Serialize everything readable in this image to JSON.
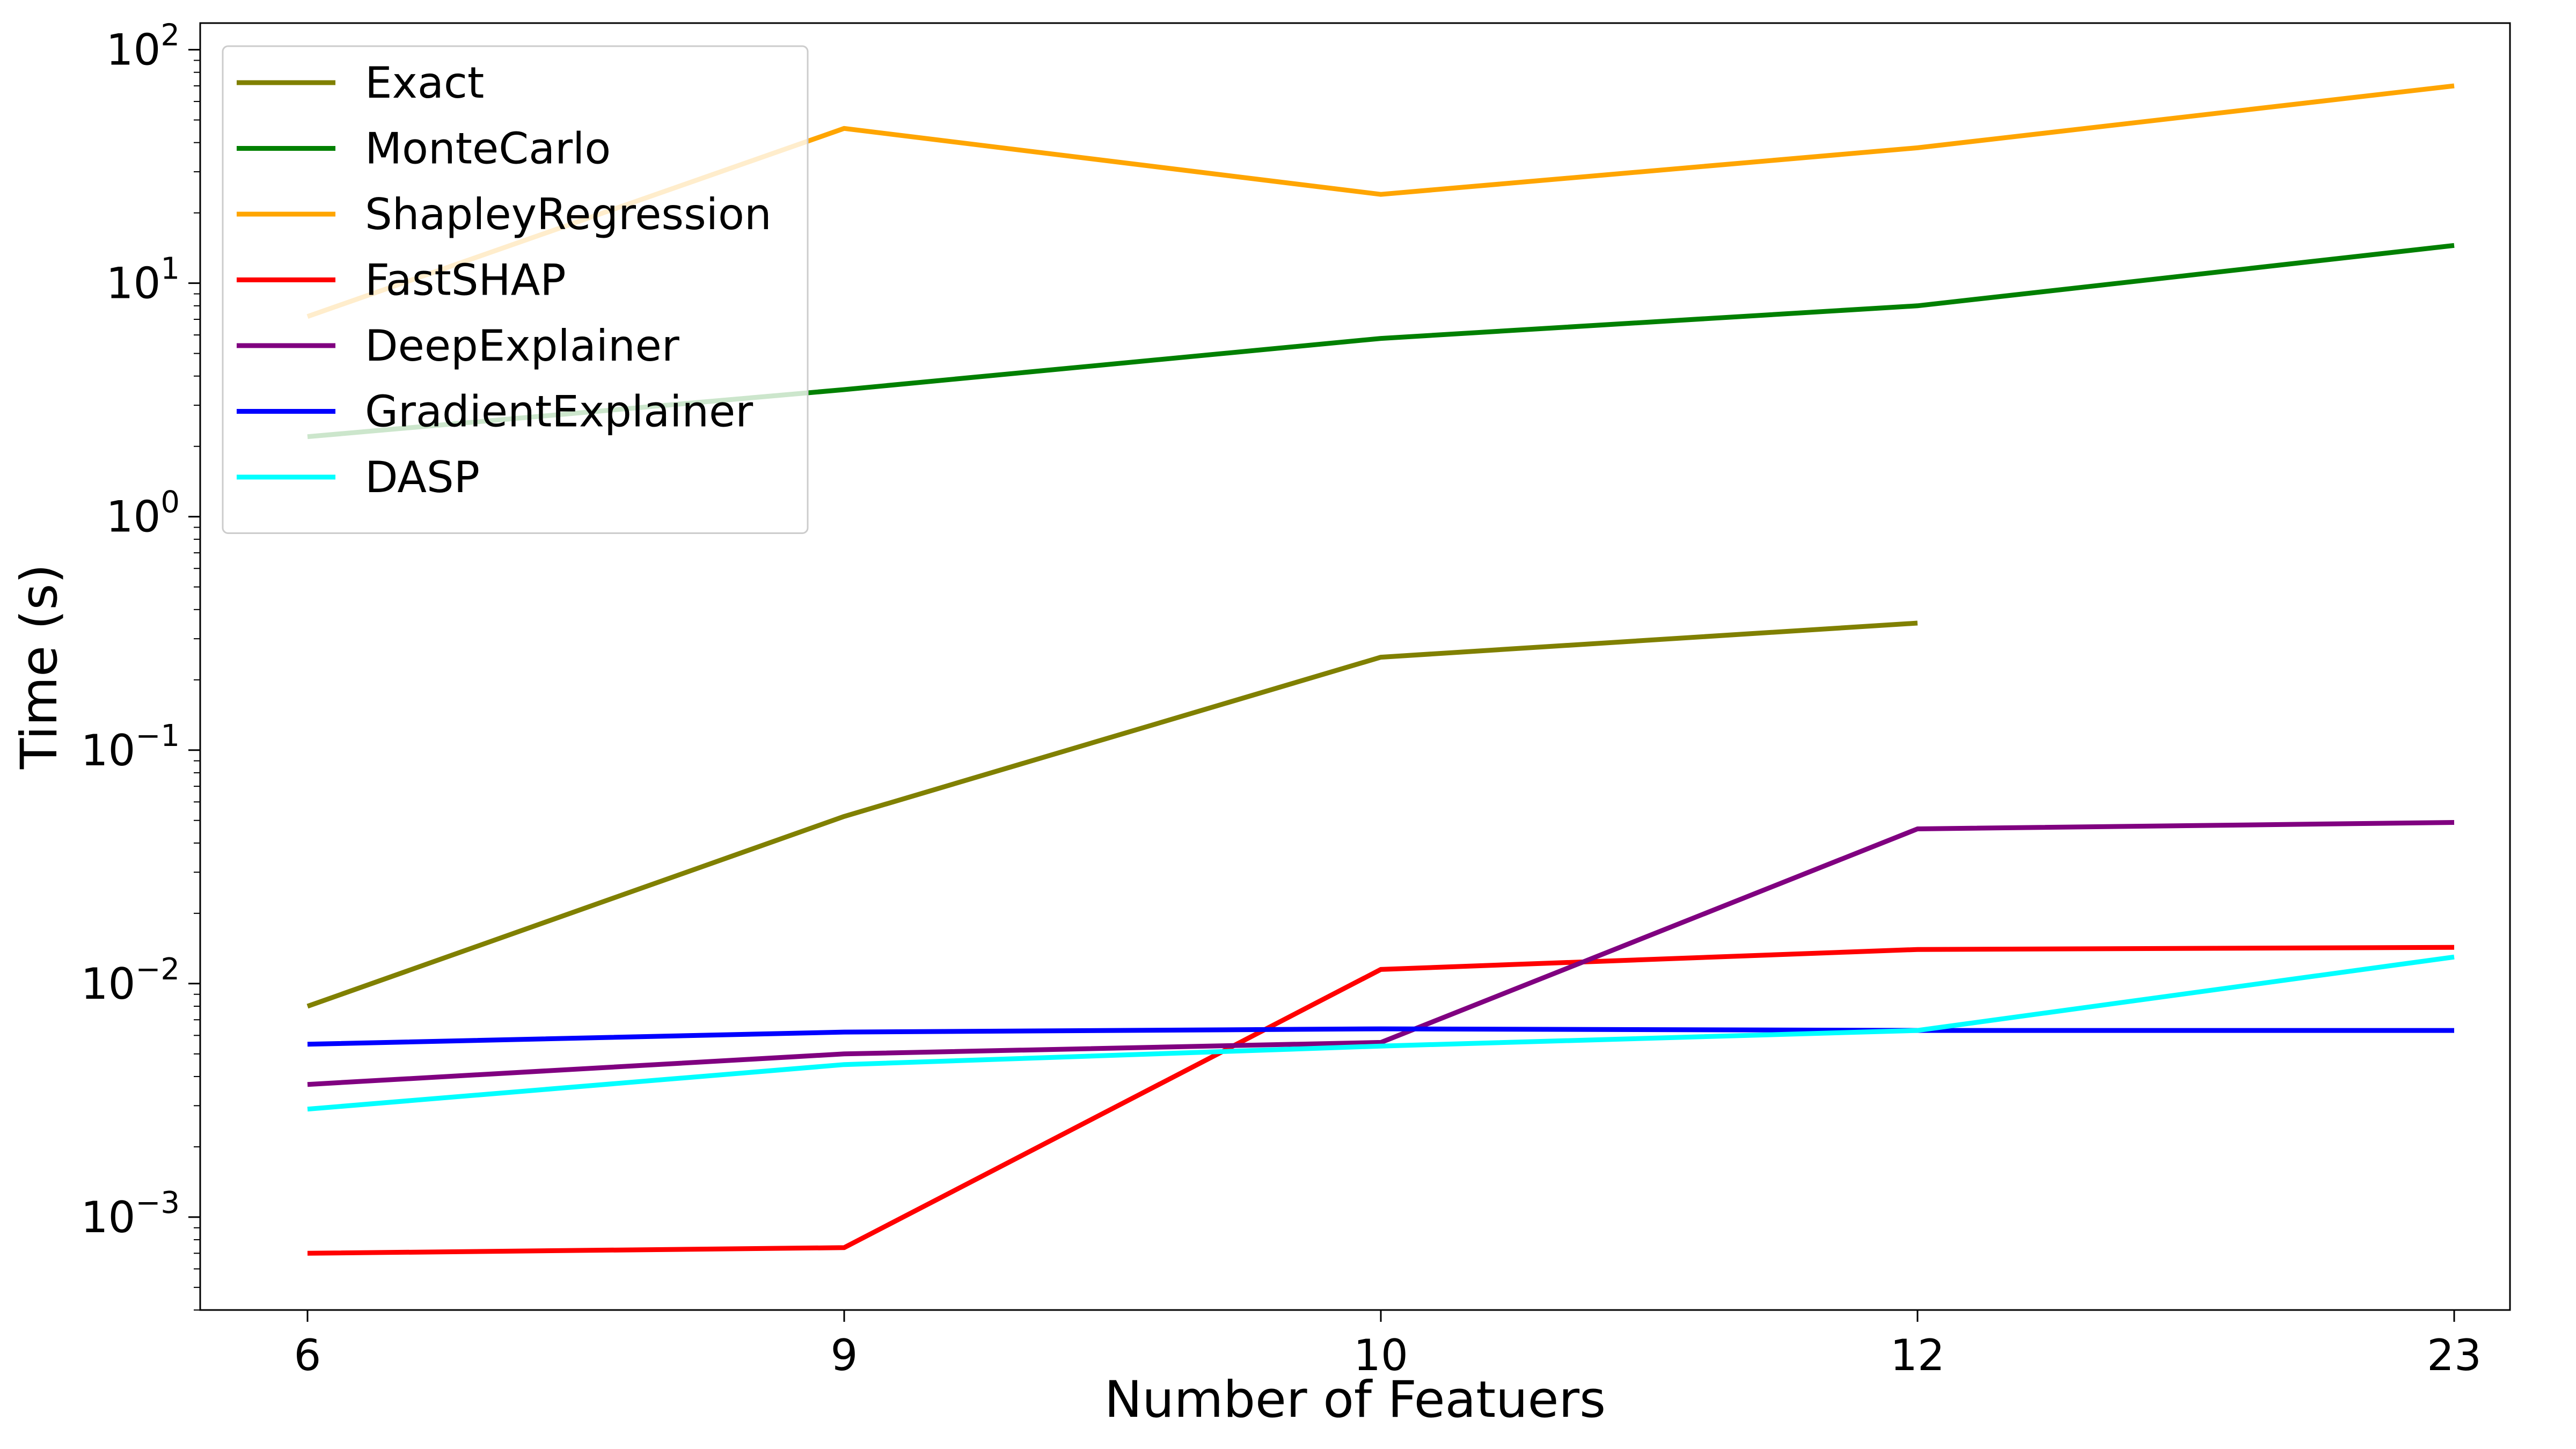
{
  "chart_data": {
    "type": "line",
    "xlabel": "Number of Featuers",
    "ylabel": "Time (s)",
    "y_scale": "log",
    "ylim": [
      0.0004,
      130
    ],
    "categories": [
      "6",
      "9",
      "10",
      "12",
      "23"
    ],
    "yticks": [
      {
        "value": 0.001,
        "base": "10",
        "exp": "−3"
      },
      {
        "value": 0.01,
        "base": "10",
        "exp": "−2"
      },
      {
        "value": 0.1,
        "base": "10",
        "exp": "−1"
      },
      {
        "value": 1,
        "base": "10",
        "exp": "0"
      },
      {
        "value": 10,
        "base": "10",
        "exp": "1"
      },
      {
        "value": 100,
        "base": "10",
        "exp": "2"
      }
    ],
    "grid": false,
    "legend_position": "top-left",
    "series": [
      {
        "name": "Exact",
        "color": "#808000",
        "values": [
          0.008,
          0.052,
          0.25,
          0.35,
          null
        ]
      },
      {
        "name": "MonteCarlo",
        "color": "#008000",
        "values": [
          2.2,
          3.5,
          5.8,
          8.0,
          14.5
        ]
      },
      {
        "name": "ShapleyRegression",
        "color": "#FFA500",
        "values": [
          7.2,
          46,
          24,
          38,
          70
        ]
      },
      {
        "name": "FastSHAP",
        "color": "#FF0000",
        "values": [
          0.0007,
          0.00074,
          0.0115,
          0.014,
          0.0143
        ]
      },
      {
        "name": "DeepExplainer",
        "color": "#800080",
        "values": [
          0.0037,
          0.005,
          0.0056,
          0.046,
          0.049
        ]
      },
      {
        "name": "GradientExplainer",
        "color": "#0000FF",
        "values": [
          0.0055,
          0.0062,
          0.0064,
          0.0063,
          0.0063
        ]
      },
      {
        "name": "DASP",
        "color": "#00FFFF",
        "values": [
          0.0029,
          0.0045,
          0.0054,
          0.0063,
          0.013
        ]
      }
    ]
  }
}
